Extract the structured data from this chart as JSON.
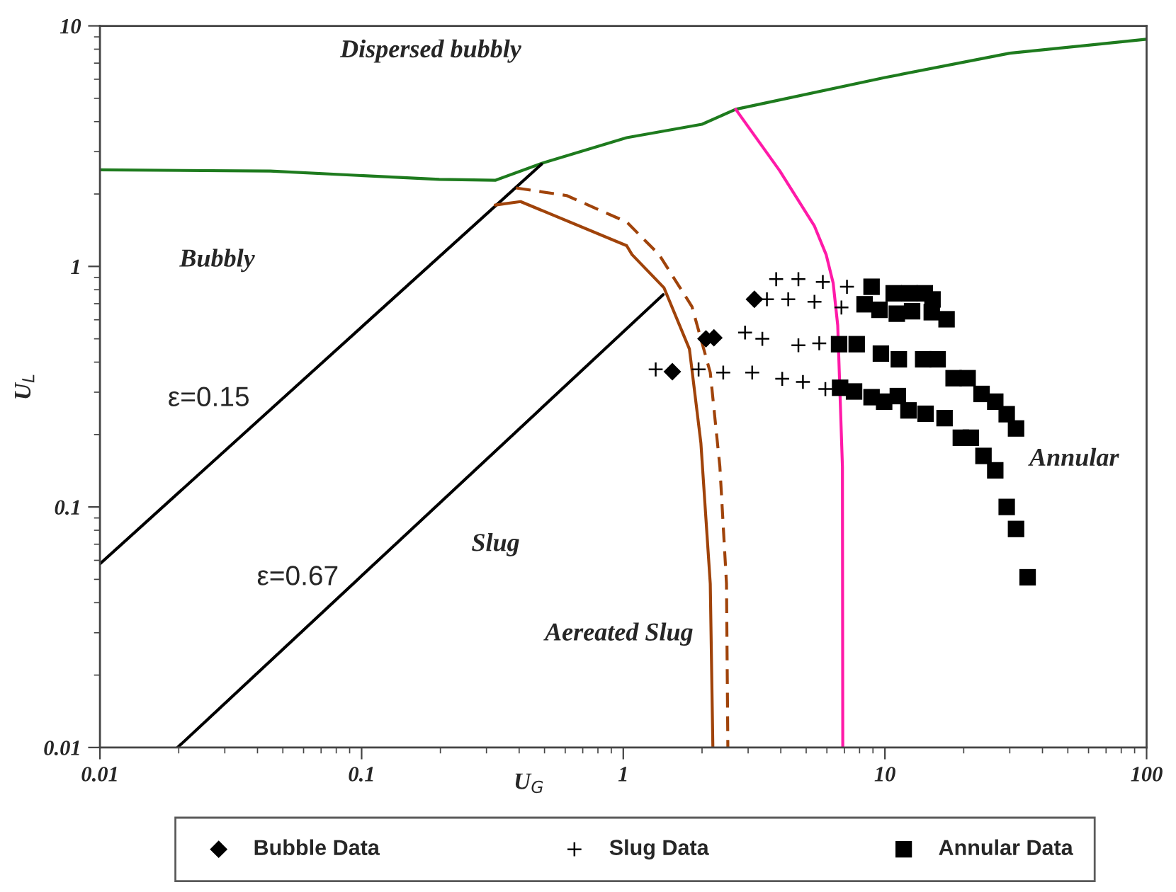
{
  "chart_data": {
    "type": "scatter",
    "xlabel": "U$_{G}$",
    "ylabel": "U$_{L}$",
    "log": "xy",
    "xlim": [
      0.01,
      100
    ],
    "ylim": [
      0.01,
      10
    ],
    "xticks": [
      0.01,
      0.1,
      1,
      10,
      100
    ],
    "yticks": [
      0.01,
      0.1,
      1,
      10
    ],
    "grid": false,
    "legend": "bottom",
    "series": [
      {
        "type": "line",
        "color": "#1e7b1e",
        "line_style": "solid",
        "marker": "none",
        "x": [
          0.01,
          0.0448,
          0.198,
          0.324,
          0.497,
          1.03,
          2.0,
          2.69,
          10,
          30,
          100
        ],
        "values": [
          2.52,
          2.49,
          2.3,
          2.28,
          2.7,
          3.43,
          3.9,
          4.5,
          6.1,
          7.7,
          8.8
        ]
      },
      {
        "type": "line",
        "color": "#ff1aa8",
        "line_style": "solid",
        "marker": "none",
        "x": [
          2.69,
          3.96,
          5.38,
          5.96,
          6.34,
          6.6,
          6.88,
          6.9
        ],
        "values": [
          4.5,
          2.5,
          1.47,
          1.12,
          0.853,
          0.569,
          0.147,
          0.01
        ]
      },
      {
        "type": "line",
        "color": "#000000",
        "line_style": "solid",
        "marker": "none",
        "x": [
          0.01,
          0.487
        ],
        "values": [
          0.058,
          2.66
        ]
      },
      {
        "type": "line",
        "color": "#000000",
        "line_style": "solid",
        "marker": "none",
        "x": [
          0.0198,
          1.42
        ],
        "values": [
          0.01,
          0.763
        ]
      },
      {
        "type": "line",
        "color": "#a0430a",
        "line_style": "solid",
        "marker": "none",
        "x": [
          0.324,
          0.405,
          1.03,
          1.08,
          1.43,
          1.79,
          1.98,
          2.15,
          2.2
        ],
        "values": [
          1.8,
          1.86,
          1.22,
          1.12,
          0.816,
          0.453,
          0.184,
          0.048,
          0.01
        ]
      },
      {
        "type": "line",
        "color": "#a0430a",
        "line_style": "dashed",
        "marker": "none",
        "x": [
          0.389,
          0.608,
          1.03,
          1.37,
          1.83,
          2.15,
          2.34,
          2.48,
          2.51
        ],
        "values": [
          2.12,
          1.97,
          1.53,
          1.12,
          0.681,
          0.362,
          0.147,
          0.048,
          0.01
        ]
      },
      {
        "name": "Bubble Data",
        "color": "#000000",
        "marker": "diamond",
        "x": [
          3.17,
          2.07,
          2.22,
          1.54
        ],
        "values": [
          0.73,
          0.5,
          0.505,
          0.365
        ]
      },
      {
        "name": "Slug Data",
        "color": "#000000",
        "marker": "cross",
        "x": [
          3.84,
          4.67,
          5.79,
          7.16,
          3.54,
          4.27,
          5.38,
          6.82,
          2.92,
          3.4,
          4.67,
          5.61,
          1.33,
          1.94,
          2.41,
          3.11,
          4.05,
          4.86,
          5.92
        ],
        "values": [
          0.885,
          0.885,
          0.862,
          0.823,
          0.73,
          0.73,
          0.713,
          0.675,
          0.531,
          0.5,
          0.47,
          0.479,
          0.373,
          0.373,
          0.362,
          0.362,
          0.341,
          0.331,
          0.309
        ]
      },
      {
        "name": "Annular Data",
        "color": "#000000",
        "marker": "square",
        "x": [
          8.89,
          10.8,
          12.4,
          14.2,
          15.2,
          8.36,
          9.53,
          11.1,
          12.7,
          15.1,
          17.2,
          6.68,
          7.8,
          9.65,
          11.3,
          14.0,
          15.9,
          18.3,
          20.7,
          23.4,
          26.4,
          29.2,
          31.7,
          6.74,
          7.62,
          8.89,
          9.93,
          11.2,
          12.3,
          14.3,
          16.9,
          19.5,
          21.3,
          23.8,
          26.4,
          29.2,
          31.7,
          35.1
        ],
        "values": [
          0.823,
          0.773,
          0.773,
          0.773,
          0.729,
          0.696,
          0.66,
          0.636,
          0.651,
          0.645,
          0.603,
          0.475,
          0.475,
          0.434,
          0.411,
          0.411,
          0.411,
          0.343,
          0.343,
          0.295,
          0.274,
          0.243,
          0.212,
          0.313,
          0.302,
          0.286,
          0.274,
          0.289,
          0.252,
          0.244,
          0.234,
          0.194,
          0.194,
          0.163,
          0.142,
          0.1,
          0.081,
          0.051
        ]
      }
    ],
    "annotations": [
      "Dispersed bubbly",
      "Bubbly",
      "ε=0.15",
      "ε=0.67",
      "Slug",
      "Aereated Slug",
      "Annular"
    ]
  }
}
